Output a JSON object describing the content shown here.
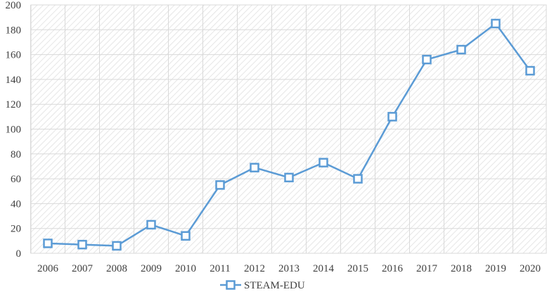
{
  "colors": {
    "series": "#5B9BD5",
    "grid": "#d9d9d9",
    "hatch": "#e3e3e3",
    "text": "#404040"
  },
  "chart_data": {
    "type": "line",
    "title": "",
    "xlabel": "",
    "ylabel": "",
    "categories": [
      "2006",
      "2007",
      "2008",
      "2009",
      "2010",
      "2011",
      "2012",
      "2013",
      "2014",
      "2015",
      "2016",
      "2017",
      "2018",
      "2019",
      "2020"
    ],
    "series": [
      {
        "name": "STEAM-EDU",
        "values": [
          8,
          7,
          6,
          23,
          14,
          55,
          69,
          61,
          73,
          60,
          110,
          156,
          164,
          185,
          147
        ],
        "marker": "square-open"
      }
    ],
    "ylim": [
      0,
      200
    ],
    "yticks": [
      "0",
      "20",
      "40",
      "60",
      "80",
      "100",
      "120",
      "140",
      "160",
      "180",
      "200"
    ],
    "grid": true,
    "legend_position": "bottom-center"
  }
}
